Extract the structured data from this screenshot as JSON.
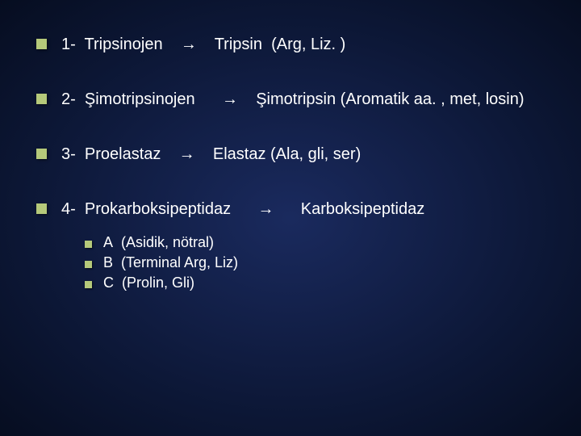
{
  "items": [
    {
      "text": "1-  Tripsinojen    →    Tripsin   (Arg, Liz. )"
    },
    {
      "text": "2-   Şimotripsinojen      →     Şimotripsin (Aromatik aa. , met, losin)"
    },
    {
      "text": "3-  Proelastaz     →     Elastaz (Ala, gli, ser)"
    },
    {
      "text": "4-  Prokarboksipeptidaz      →      Karboksipeptidaz"
    }
  ],
  "subitems": [
    {
      "text": "A  (Asidik, nötral)"
    },
    {
      "text": "B  (Terminal Arg, Liz)"
    },
    {
      "text": "C  (Prolin, Gli)"
    }
  ],
  "colors": {
    "bullet": "#b5c97a",
    "text": "#ffffff",
    "bg_center": "#1a2a5e",
    "bg_edge": "#060d20"
  },
  "fontsize_main": 20,
  "fontsize_sub": 18
}
